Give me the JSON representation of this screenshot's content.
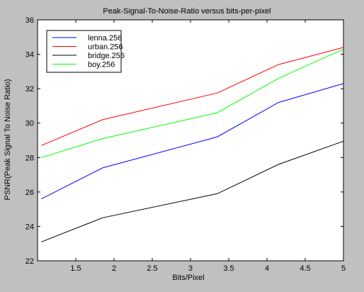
{
  "chart_data": {
    "type": "line",
    "title": "Peak-Signal-To-Noise-Ratio versus bits-per-pixel",
    "xlabel": "Bits/Pixel",
    "ylabel": "PSNR(Peak Signal To Noise Ratio)",
    "xlim": [
      1,
      5
    ],
    "ylim": [
      22,
      36
    ],
    "xticks": [
      1.5,
      2,
      2.5,
      3,
      3.5,
      4,
      4.5,
      5
    ],
    "xtick_labels": [
      "1.5",
      "2",
      "2.5",
      "3",
      "3.5",
      "4",
      "4.5",
      "5"
    ],
    "yticks": [
      22,
      24,
      26,
      28,
      30,
      32,
      34,
      36
    ],
    "ytick_labels": [
      "22",
      "24",
      "26",
      "28",
      "30",
      "32",
      "34",
      "36"
    ],
    "grid": false,
    "legend_position": "top-left",
    "series": [
      {
        "name": "lenna.256",
        "color": "#0000ff",
        "x": [
          1.05,
          1.85,
          3.35,
          4.15,
          5.0
        ],
        "y": [
          25.6,
          27.4,
          29.2,
          31.2,
          32.3
        ]
      },
      {
        "name": "urban.256",
        "color": "#ff0000",
        "x": [
          1.05,
          1.85,
          3.35,
          4.15,
          5.0
        ],
        "y": [
          28.7,
          30.2,
          31.75,
          33.4,
          34.4
        ]
      },
      {
        "name": "bridge.256",
        "color": "#000000",
        "x": [
          1.05,
          1.85,
          3.35,
          4.15,
          5.0
        ],
        "y": [
          23.1,
          24.5,
          25.9,
          27.6,
          28.95
        ]
      },
      {
        "name": "boy.256",
        "color": "#00ff00",
        "x": [
          1.05,
          1.85,
          3.35,
          4.15,
          5.0
        ],
        "y": [
          28.0,
          29.1,
          30.6,
          32.6,
          34.3
        ]
      }
    ]
  },
  "colors": {
    "figure_background": "#c0c0c0",
    "axes_background": "#ffffff",
    "axis_color": "#000000"
  }
}
